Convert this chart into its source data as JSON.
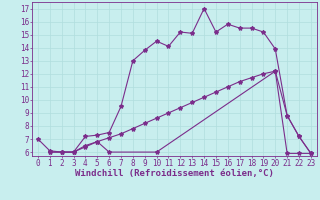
{
  "line1_x": [
    0,
    1,
    2,
    3,
    4,
    5,
    6,
    7,
    8,
    9,
    10,
    11,
    12,
    13,
    14,
    15,
    16,
    17,
    18,
    19,
    20,
    21,
    22,
    23
  ],
  "line1_y": [
    7.0,
    6.1,
    6.0,
    6.0,
    7.2,
    7.3,
    7.5,
    9.5,
    13.0,
    13.8,
    14.5,
    14.1,
    15.2,
    15.1,
    17.0,
    15.2,
    15.8,
    15.5,
    15.5,
    15.2,
    13.9,
    8.8,
    7.2,
    5.9
  ],
  "line2_x": [
    1,
    2,
    3,
    4,
    5,
    6,
    10,
    20,
    21,
    22,
    23
  ],
  "line2_y": [
    6.0,
    6.0,
    6.0,
    6.5,
    6.8,
    6.0,
    6.0,
    12.2,
    5.9,
    5.9,
    5.9
  ],
  "line3_x": [
    1,
    2,
    3,
    4,
    5,
    6,
    7,
    8,
    9,
    10,
    11,
    12,
    13,
    14,
    15,
    16,
    17,
    18,
    19,
    20,
    21,
    22,
    23
  ],
  "line3_y": [
    6.0,
    6.0,
    6.0,
    6.4,
    6.8,
    7.1,
    7.4,
    7.8,
    8.2,
    8.6,
    9.0,
    9.4,
    9.8,
    10.2,
    10.6,
    11.0,
    11.4,
    11.7,
    12.0,
    12.2,
    8.8,
    7.2,
    5.9
  ],
  "line_color": "#7b2d8b",
  "bg_color": "#c8eeee",
  "grid_color": "#b0dede",
  "xlabel": "Windchill (Refroidissement éolien,°C)",
  "xlim": [
    -0.5,
    23.5
  ],
  "ylim": [
    5.7,
    17.5
  ],
  "xticks": [
    0,
    1,
    2,
    3,
    4,
    5,
    6,
    7,
    8,
    9,
    10,
    11,
    12,
    13,
    14,
    15,
    16,
    17,
    18,
    19,
    20,
    21,
    22,
    23
  ],
  "yticks": [
    6,
    7,
    8,
    9,
    10,
    11,
    12,
    13,
    14,
    15,
    16,
    17
  ],
  "xlabel_fontsize": 6.5,
  "tick_fontsize": 5.5,
  "marker": "*",
  "markersize": 3.0,
  "linewidth": 0.8
}
